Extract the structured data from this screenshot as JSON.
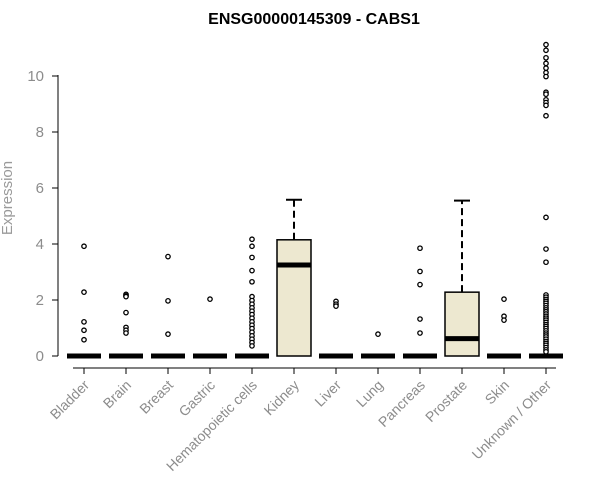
{
  "chart_data": {
    "type": "box",
    "title": "ENSG00000145309 - CABS1",
    "xlabel": "",
    "ylabel": "Expression",
    "ylim": [
      0,
      11.2
    ],
    "yticks": [
      0,
      2,
      4,
      6,
      8,
      10
    ],
    "grid": false,
    "box_fill": "#ede8d0",
    "categories": [
      "Bladder",
      "Brain",
      "Breast",
      "Gastric",
      "Hematopoietic cells",
      "Kidney",
      "Liver",
      "Lung",
      "Pancreas",
      "Prostate",
      "Skin",
      "Unknown / Other"
    ],
    "boxes": [
      {
        "name": "Bladder",
        "q1": 0,
        "median": 0,
        "q3": 0,
        "whisker_low": 0,
        "whisker_high": 0,
        "outliers": [
          3.92,
          2.28,
          1.22,
          0.92,
          0.58
        ]
      },
      {
        "name": "Brain",
        "q1": 0,
        "median": 0,
        "q3": 0,
        "whisker_low": 0,
        "whisker_high": 0,
        "outliers": [
          2.2,
          2.15,
          2.12,
          1.55,
          1.02,
          0.92,
          0.82
        ]
      },
      {
        "name": "Breast",
        "q1": 0,
        "median": 0,
        "q3": 0,
        "whisker_low": 0,
        "whisker_high": 0,
        "outliers": [
          3.55,
          1.97,
          0.78
        ]
      },
      {
        "name": "Gastric",
        "q1": 0,
        "median": 0,
        "q3": 0,
        "whisker_low": 0,
        "whisker_high": 0,
        "outliers": [
          2.03
        ]
      },
      {
        "name": "Hematopoietic cells",
        "q1": 0,
        "median": 0,
        "q3": 0,
        "whisker_low": 0,
        "whisker_high": 0,
        "outliers": [
          4.17,
          3.92,
          3.52,
          3.05,
          2.65,
          2.12,
          1.98,
          1.85,
          1.72,
          1.6,
          1.48,
          1.35,
          1.22,
          1.1,
          0.98,
          0.85,
          0.72,
          0.6,
          0.48,
          0.36
        ]
      },
      {
        "name": "Kidney",
        "q1": 0,
        "median": 3.25,
        "q3": 4.15,
        "whisker_low": 0,
        "whisker_high": 5.58,
        "outliers": []
      },
      {
        "name": "Liver",
        "q1": 0,
        "median": 0,
        "q3": 0,
        "whisker_low": 0,
        "whisker_high": 0,
        "outliers": [
          1.95,
          1.85,
          1.78
        ]
      },
      {
        "name": "Lung",
        "q1": 0,
        "median": 0,
        "q3": 0,
        "whisker_low": 0,
        "whisker_high": 0,
        "outliers": [
          0.78
        ]
      },
      {
        "name": "Pancreas",
        "q1": 0,
        "median": 0,
        "q3": 0,
        "whisker_low": 0,
        "whisker_high": 0,
        "outliers": [
          3.85,
          3.02,
          2.55,
          1.32,
          0.82
        ]
      },
      {
        "name": "Prostate",
        "q1": 0,
        "median": 0.62,
        "q3": 2.28,
        "whisker_low": 0,
        "whisker_high": 5.55,
        "outliers": []
      },
      {
        "name": "Skin",
        "q1": 0,
        "median": 0,
        "q3": 0,
        "whisker_low": 0,
        "whisker_high": 0,
        "outliers": [
          2.03,
          1.42,
          1.28
        ]
      },
      {
        "name": "Unknown / Other",
        "q1": 0,
        "median": 0,
        "q3": 0,
        "whisker_low": 0,
        "whisker_high": 0,
        "outliers": [
          11.12,
          10.92,
          10.65,
          10.45,
          10.28,
          10.12,
          9.98,
          9.42,
          9.35,
          9.15,
          9.05,
          8.95,
          8.58,
          4.95,
          3.82,
          3.35,
          2.18,
          2.1,
          2.02,
          1.95,
          1.88,
          1.8,
          1.72,
          1.65,
          1.58,
          1.5,
          1.42,
          1.35,
          1.28,
          1.2,
          1.12,
          1.05,
          0.98,
          0.9,
          0.82,
          0.75,
          0.68,
          0.6,
          0.52,
          0.45,
          0.38,
          0.3,
          0.22,
          0.15
        ]
      }
    ]
  }
}
